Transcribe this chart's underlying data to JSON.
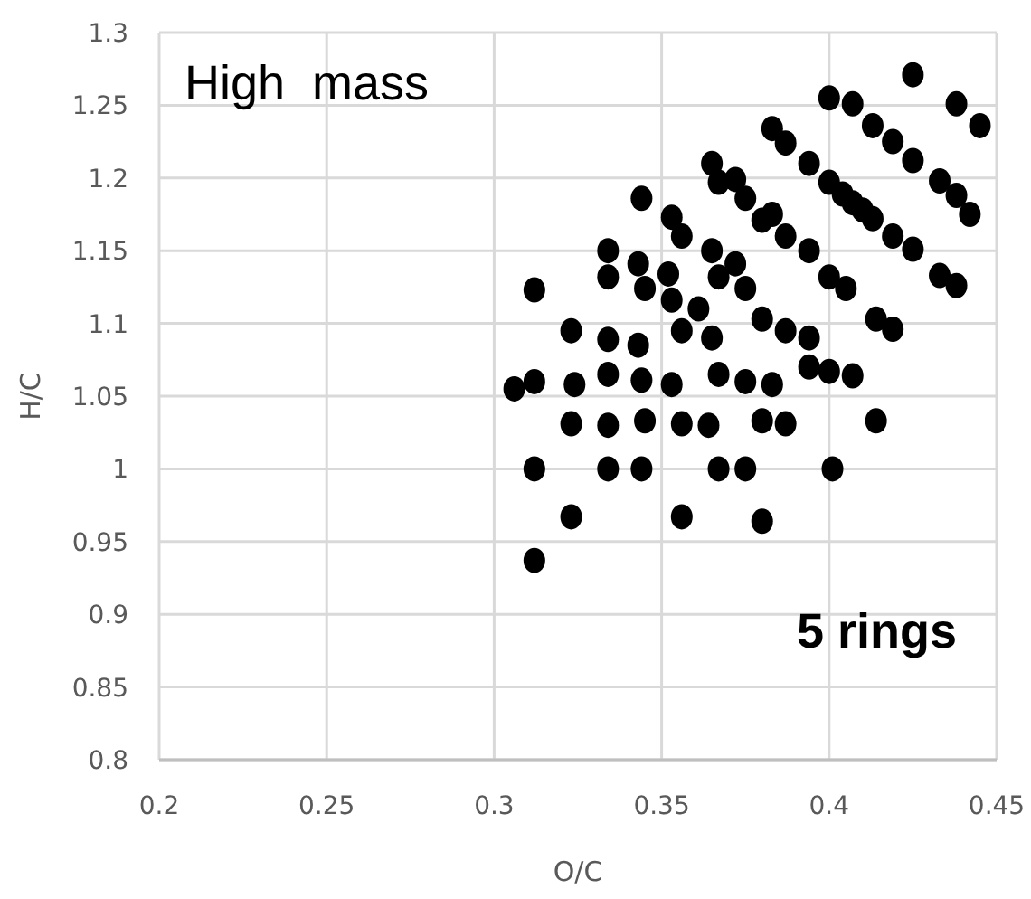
{
  "chart_data": {
    "type": "scatter",
    "xlabel": "O/C",
    "ylabel": "H/C",
    "xlim": [
      0.2,
      0.45
    ],
    "xticks": [
      0.2,
      0.25,
      0.3,
      0.35,
      0.4,
      0.45
    ],
    "ylim": [
      0.8,
      1.3
    ],
    "yticks": [
      0.8,
      0.85,
      0.9,
      0.95,
      1,
      1.05,
      1.1,
      1.15,
      1.2,
      1.25,
      1.3
    ],
    "grid": true,
    "marker": "circle",
    "annotations": [
      "High  mass",
      "5 rings"
    ],
    "series": [
      {
        "color": "#000000",
        "x": [
          0.306,
          0.312,
          0.324,
          0.334,
          0.344,
          0.353,
          0.367,
          0.375,
          0.383,
          0.394,
          0.323,
          0.334,
          0.345,
          0.356,
          0.364,
          0.38,
          0.387,
          0.312,
          0.334,
          0.344,
          0.367,
          0.375,
          0.401,
          0.414,
          0.323,
          0.356,
          0.38,
          0.312,
          0.312,
          0.323,
          0.334,
          0.343,
          0.356,
          0.365,
          0.334,
          0.334,
          0.343,
          0.345,
          0.344,
          0.352,
          0.353,
          0.361,
          0.353,
          0.356,
          0.365,
          0.367,
          0.372,
          0.375,
          0.38,
          0.387,
          0.394,
          0.365,
          0.367,
          0.372,
          0.375,
          0.38,
          0.383,
          0.387,
          0.394,
          0.383,
          0.387,
          0.394,
          0.4,
          0.4,
          0.4,
          0.4,
          0.425,
          0.407,
          0.438,
          0.445,
          0.413,
          0.419,
          0.425,
          0.433,
          0.438,
          0.442,
          0.404,
          0.407,
          0.41,
          0.413,
          0.419,
          0.425,
          0.405,
          0.414,
          0.419,
          0.433,
          0.438,
          0.407
        ],
        "values": [
          1.055,
          1.06,
          1.058,
          1.065,
          1.061,
          1.058,
          1.065,
          1.06,
          1.058,
          1.07,
          1.031,
          1.03,
          1.033,
          1.031,
          1.03,
          1.033,
          1.031,
          1,
          1,
          1,
          1,
          1,
          1,
          1.033,
          0.967,
          0.967,
          0.964,
          0.937,
          1.123,
          1.095,
          1.089,
          1.085,
          1.095,
          1.09,
          1.15,
          1.132,
          1.141,
          1.124,
          1.186,
          1.134,
          1.116,
          1.11,
          1.173,
          1.16,
          1.15,
          1.132,
          1.141,
          1.124,
          1.103,
          1.095,
          1.09,
          1.21,
          1.197,
          1.199,
          1.186,
          1.171,
          1.175,
          1.16,
          1.15,
          1.234,
          1.224,
          1.21,
          1.255,
          1.197,
          1.132,
          1.067,
          1.271,
          1.251,
          1.251,
          1.236,
          1.236,
          1.225,
          1.212,
          1.198,
          1.188,
          1.175,
          1.189,
          1.183,
          1.178,
          1.172,
          1.16,
          1.151,
          1.124,
          1.103,
          1.096,
          1.133,
          1.126,
          1.064
        ]
      }
    ]
  }
}
